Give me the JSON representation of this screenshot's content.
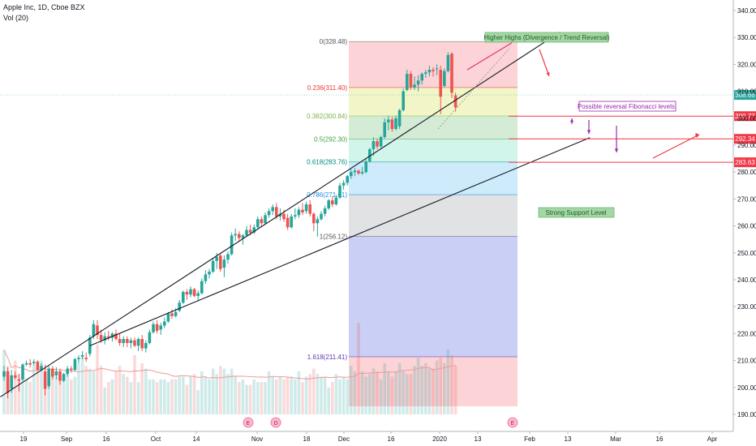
{
  "header": {
    "symbol_line": "Apple Inc, 1D, Cboe BZX",
    "volume_line": "Vol (20)"
  },
  "chart_data": {
    "type": "candlestick",
    "yaxis": {
      "ticks": [
        190,
        200,
        210,
        220,
        230,
        240,
        250,
        260,
        270,
        280,
        290,
        300,
        310,
        320,
        330,
        340
      ],
      "ylim": [
        183,
        346
      ],
      "side": "right"
    },
    "xaxis": {
      "ticks": [
        "19",
        "Sep",
        "16",
        "Oct",
        "14",
        "Nov",
        "18",
        "Dec",
        "16",
        "2020",
        "13",
        "Feb",
        "13",
        "Mar",
        "16",
        "Apr"
      ]
    },
    "candles": [
      [
        204.0,
        208.0,
        202.5,
        206.0
      ],
      [
        206.0,
        207.5,
        196.0,
        198.0
      ],
      [
        199.5,
        206.5,
        198.0,
        204.5
      ],
      [
        204.5,
        206.0,
        203.0,
        203.6
      ],
      [
        203.0,
        205.0,
        198.5,
        202.5
      ],
      [
        203.0,
        209.0,
        202.5,
        208.5
      ],
      [
        208.5,
        210.0,
        208.0,
        209.0
      ],
      [
        209.0,
        210.5,
        207.5,
        208.5
      ],
      [
        209.0,
        210.5,
        208.0,
        209.5
      ],
      [
        209.5,
        210.0,
        206.0,
        206.5
      ],
      [
        206.5,
        209.0,
        206.0,
        208.0
      ],
      [
        206.0,
        208.5,
        197.0,
        199.5
      ],
      [
        200.5,
        208.0,
        199.5,
        207.0
      ],
      [
        207.0,
        208.0,
        203.0,
        204.0
      ],
      [
        204.5,
        207.5,
        203.0,
        206.0
      ],
      [
        206.0,
        207.0,
        201.0,
        202.5
      ],
      [
        202.5,
        205.5,
        202.0,
        205.0
      ],
      [
        205.0,
        208.0,
        204.0,
        207.0
      ],
      [
        207.0,
        208.0,
        205.5,
        206.5
      ],
      [
        206.5,
        211.0,
        206.0,
        210.5
      ],
      [
        210.5,
        212.0,
        209.0,
        211.0
      ],
      [
        211.5,
        213.5,
        210.5,
        212.0
      ],
      [
        211.0,
        213.0,
        209.5,
        210.5
      ],
      [
        212.5,
        219.5,
        211.5,
        218.5
      ],
      [
        219.0,
        225.0,
        218.0,
        223.5
      ],
      [
        223.0,
        225.0,
        218.0,
        219.5
      ],
      [
        219.5,
        221.5,
        216.5,
        217.5
      ],
      [
        217.5,
        220.5,
        216.0,
        219.0
      ],
      [
        219.0,
        221.0,
        217.5,
        218.5
      ],
      [
        218.5,
        220.5,
        217.0,
        220.0
      ],
      [
        220.0,
        221.5,
        217.5,
        218.0
      ],
      [
        218.0,
        220.0,
        215.5,
        216.5
      ],
      [
        216.5,
        219.0,
        215.0,
        218.0
      ],
      [
        218.0,
        219.0,
        215.0,
        216.5
      ],
      [
        216.5,
        218.5,
        214.5,
        217.5
      ],
      [
        217.5,
        218.5,
        215.0,
        215.5
      ],
      [
        215.5,
        218.5,
        213.5,
        218.0
      ],
      [
        218.0,
        219.5,
        213.5,
        214.5
      ],
      [
        214.5,
        217.5,
        213.0,
        216.5
      ],
      [
        216.5,
        221.5,
        216.0,
        220.5
      ],
      [
        220.5,
        224.5,
        220.0,
        223.5
      ],
      [
        223.5,
        225.0,
        220.0,
        221.0
      ],
      [
        221.5,
        224.0,
        219.5,
        223.0
      ],
      [
        223.0,
        226.0,
        222.0,
        224.5
      ],
      [
        224.5,
        228.0,
        224.0,
        227.5
      ],
      [
        227.5,
        229.0,
        225.5,
        226.5
      ],
      [
        226.5,
        229.5,
        226.0,
        228.0
      ],
      [
        228.5,
        232.5,
        228.0,
        231.5
      ],
      [
        231.5,
        236.0,
        231.0,
        235.5
      ],
      [
        235.5,
        236.5,
        232.5,
        234.5
      ],
      [
        234.5,
        237.5,
        233.5,
        236.5
      ],
      [
        236.5,
        237.0,
        233.5,
        234.0
      ],
      [
        234.0,
        236.0,
        232.0,
        235.0
      ],
      [
        235.0,
        240.5,
        234.5,
        239.5
      ],
      [
        239.5,
        243.5,
        238.5,
        242.0
      ],
      [
        242.0,
        244.0,
        240.5,
        243.0
      ],
      [
        243.0,
        248.0,
        242.5,
        247.0
      ],
      [
        247.0,
        250.0,
        244.0,
        248.5
      ],
      [
        249.0,
        249.5,
        243.0,
        244.0
      ],
      [
        244.5,
        249.0,
        241.0,
        247.5
      ],
      [
        247.5,
        250.5,
        246.0,
        249.5
      ],
      [
        249.5,
        257.5,
        249.0,
        256.5
      ],
      [
        256.5,
        259.0,
        254.5,
        257.0
      ],
      [
        257.0,
        258.0,
        254.5,
        255.5
      ],
      [
        255.5,
        257.0,
        253.0,
        256.5
      ],
      [
        256.5,
        260.0,
        256.0,
        258.5
      ],
      [
        258.5,
        260.5,
        256.5,
        257.5
      ],
      [
        257.5,
        260.5,
        257.0,
        259.5
      ],
      [
        259.5,
        263.5,
        259.0,
        262.5
      ],
      [
        262.5,
        263.5,
        259.5,
        261.0
      ],
      [
        261.0,
        265.0,
        260.5,
        264.0
      ],
      [
        264.0,
        266.5,
        263.0,
        265.5
      ],
      [
        265.5,
        268.0,
        264.0,
        267.0
      ],
      [
        267.0,
        268.5,
        262.5,
        263.5
      ],
      [
        263.5,
        266.5,
        262.0,
        264.5
      ],
      [
        264.5,
        266.0,
        261.5,
        262.5
      ],
      [
        263.0,
        264.5,
        258.5,
        259.5
      ],
      [
        259.5,
        264.5,
        259.0,
        263.5
      ],
      [
        263.5,
        266.5,
        262.5,
        264.0
      ],
      [
        264.0,
        267.0,
        263.0,
        266.0
      ],
      [
        266.0,
        268.5,
        264.0,
        265.0
      ],
      [
        265.5,
        269.0,
        264.5,
        268.0
      ],
      [
        268.0,
        269.5,
        263.5,
        264.5
      ],
      [
        264.5,
        265.0,
        258.0,
        261.0
      ],
      [
        261.0,
        263.5,
        256.0,
        262.5
      ],
      [
        262.5,
        265.5,
        262.0,
        264.5
      ],
      [
        264.5,
        267.5,
        263.5,
        266.5
      ],
      [
        266.5,
        270.0,
        266.0,
        269.5
      ],
      [
        269.5,
        271.0,
        267.0,
        268.0
      ],
      [
        268.0,
        271.5,
        267.5,
        270.5
      ],
      [
        270.5,
        276.0,
        270.0,
        275.0
      ],
      [
        275.0,
        277.0,
        273.5,
        276.0
      ],
      [
        276.0,
        279.0,
        275.0,
        278.5
      ],
      [
        278.5,
        281.0,
        277.5,
        280.0
      ],
      [
        280.0,
        281.5,
        278.5,
        280.5
      ],
      [
        280.5,
        281.0,
        279.0,
        279.5
      ],
      [
        279.5,
        282.0,
        279.0,
        280.0
      ],
      [
        280.0,
        285.0,
        279.5,
        284.0
      ],
      [
        284.0,
        289.0,
        283.5,
        288.5
      ],
      [
        288.5,
        293.0,
        286.0,
        291.5
      ],
      [
        291.5,
        292.5,
        288.5,
        289.5
      ],
      [
        289.5,
        293.5,
        289.0,
        293.0
      ],
      [
        293.0,
        300.0,
        292.5,
        298.5
      ],
      [
        298.5,
        301.0,
        295.5,
        299.5
      ],
      [
        299.5,
        300.5,
        295.0,
        296.0
      ],
      [
        296.0,
        301.0,
        295.5,
        300.0
      ],
      [
        297.0,
        303.5,
        296.0,
        303.0
      ],
      [
        303.0,
        311.0,
        302.5,
        310.0
      ],
      [
        310.5,
        318.0,
        310.0,
        316.5
      ],
      [
        316.5,
        317.5,
        310.5,
        311.5
      ],
      [
        311.5,
        315.5,
        310.5,
        312.5
      ],
      [
        312.5,
        316.0,
        310.0,
        314.0
      ],
      [
        314.0,
        317.0,
        312.5,
        316.5
      ],
      [
        316.5,
        318.0,
        315.0,
        317.0
      ],
      [
        317.0,
        319.5,
        315.5,
        318.0
      ],
      [
        318.0,
        319.0,
        315.5,
        317.5
      ],
      [
        318.5,
        320.0,
        316.0,
        318.5
      ],
      [
        318.0,
        319.5,
        301.5,
        308.0
      ],
      [
        312.0,
        318.5,
        311.5,
        317.5
      ],
      [
        317.5,
        324.5,
        317.0,
        323.5
      ],
      [
        324.0,
        324.5,
        307.5,
        309.5
      ],
      [
        308.5,
        309.5,
        302.5,
        304.0
      ]
    ],
    "volumes": [
      214,
      208,
      200,
      210,
      205,
      206,
      203,
      202,
      208,
      210,
      210,
      206,
      206,
      207,
      204,
      206,
      203,
      205,
      203,
      204,
      209,
      212,
      208,
      207,
      206,
      216,
      208,
      200,
      202,
      203,
      206,
      208,
      205,
      204,
      202,
      212,
      202,
      209,
      207,
      203,
      203,
      202,
      203,
      203,
      202,
      203,
      203,
      204,
      204,
      201,
      204,
      205,
      199,
      206,
      204,
      203,
      207,
      205,
      208,
      207,
      205,
      207,
      204,
      202,
      203,
      201,
      201,
      203,
      202,
      202,
      202,
      206,
      204,
      203,
      204,
      203,
      204,
      204,
      203,
      206,
      202,
      204,
      205,
      207,
      205,
      204,
      204,
      200,
      202,
      205,
      203,
      204,
      203,
      208,
      206,
      224,
      206,
      204,
      205,
      207,
      206,
      203,
      209,
      206,
      204,
      206,
      209,
      206,
      205,
      205,
      208,
      211,
      208,
      209,
      207,
      207,
      210,
      211,
      209,
      214,
      212,
      208
    ],
    "fibonacci": {
      "levels": [
        {
          "label": "0(328.48)",
          "price": 328.48,
          "label_color": "#555555",
          "fill": "rgba(242,54,69,0.22)"
        },
        {
          "label": "0.236(311.40)",
          "price": 311.4,
          "label_color": "#e53935",
          "fill": "rgba(205,220,57,0.28)"
        },
        {
          "label": "0.382(300.84)",
          "price": 300.84,
          "label_color": "#7cb342",
          "fill": "rgba(76,175,80,0.24)"
        },
        {
          "label": "0.5(292.30)",
          "price": 292.3,
          "label_color": "#43a047",
          "fill": "rgba(0,200,140,0.18)"
        },
        {
          "label": "0.618(283.76)",
          "price": 283.76,
          "label_color": "#00897b",
          "fill": "rgba(3,155,229,0.20)"
        },
        {
          "label": "0.786(271.61)",
          "price": 271.61,
          "label_color": "#1e88e5",
          "fill": "rgba(120,123,134,0.22)"
        },
        {
          "label": "1(256.12)",
          "price": 256.12,
          "label_color": "#555555",
          "fill": "rgba(63,81,220,0.28)"
        },
        {
          "label": "1.618(211.41)",
          "price": 211.41,
          "label_color": "#5e35b1",
          "fill": "rgba(242,54,69,0.22)"
        }
      ],
      "bottom_price": 193
    },
    "trendlines": [
      {
        "from": [
          -1,
          196.5
        ],
        "to": [
          149,
          332
        ]
      },
      {
        "from": [
          23,
          215.5
        ],
        "to": [
          157,
          292.8
        ]
      }
    ],
    "hlines": [
      {
        "price": 300.77,
        "label": "300.77"
      },
      {
        "price": 292.34,
        "label": "292.34"
      },
      {
        "price": 283.63,
        "label": "283.63"
      }
    ],
    "current_price": {
      "price": 308.66,
      "label": "308.66"
    },
    "annotations": [
      {
        "text": "Higher Highs (Divergence / Trend Reversal)"
      },
      {
        "text": "Possible reversal Fibonacci levels."
      },
      {
        "text": "Strong Support Level"
      }
    ],
    "event_markers": [
      {
        "index": 53,
        "text": "E"
      },
      {
        "index": 60,
        "text": "D"
      },
      {
        "index": 112,
        "text": "E"
      }
    ]
  },
  "colors": {
    "up": "#26a69a",
    "down": "#ef5350",
    "up_volume": "rgba(38,166,154,0.22)",
    "down_volume": "rgba(239,83,80,0.22)",
    "hline": "#f23645",
    "annotation_green": "#a5d6a7",
    "annotation_purple": "#9c27b0"
  }
}
